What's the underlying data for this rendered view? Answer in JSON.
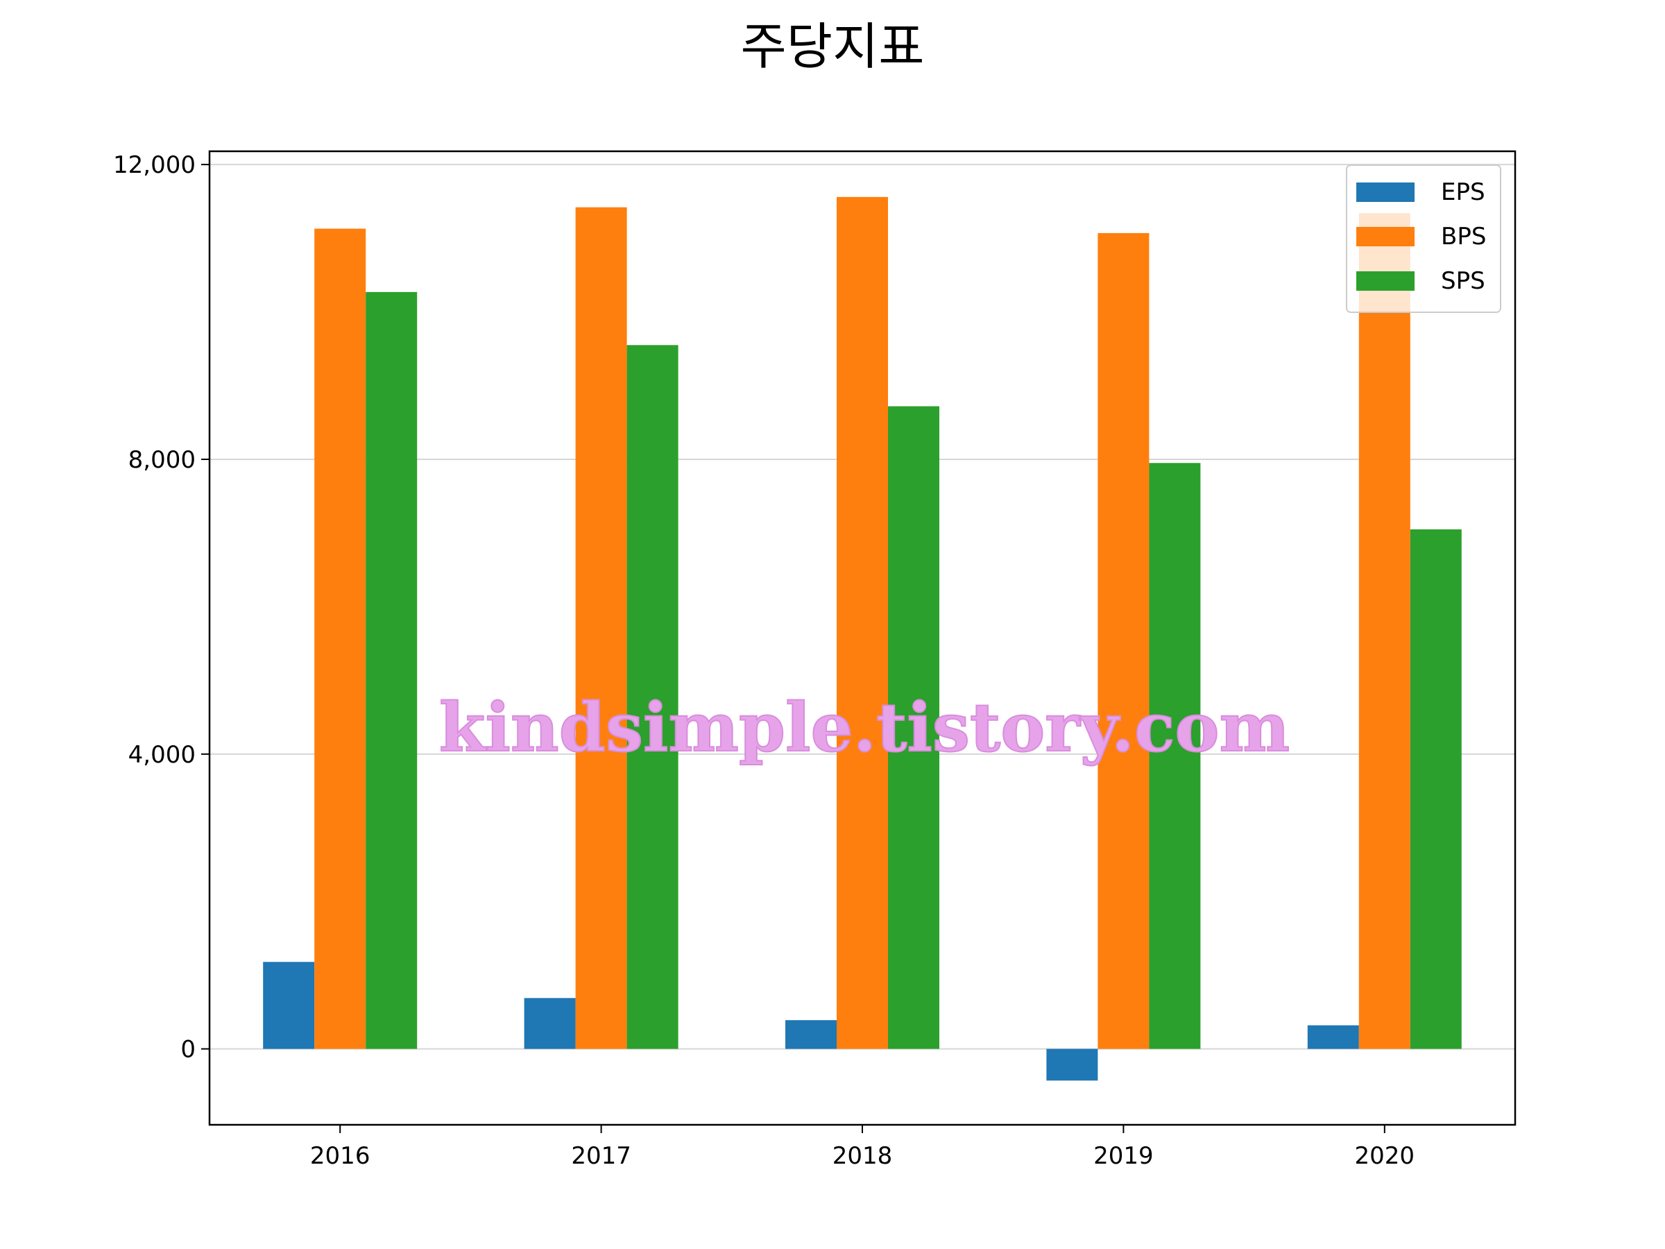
{
  "chart_data": {
    "type": "bar",
    "title": "주당지표",
    "xlabel": "",
    "ylabel": "",
    "categories": [
      "2016",
      "2017",
      "2018",
      "2019",
      "2020"
    ],
    "series": [
      {
        "name": "EPS",
        "color": "#1f77b4",
        "values": [
          1180,
          690,
          390,
          -430,
          320
        ]
      },
      {
        "name": "BPS",
        "color": "#ff7f0e",
        "values": [
          11130,
          11420,
          11560,
          11070,
          11340
        ]
      },
      {
        "name": "SPS",
        "color": "#2ca02c",
        "values": [
          10270,
          9550,
          8720,
          7950,
          7050
        ]
      }
    ],
    "ylim": [
      -1030,
      12180
    ],
    "yticks": [
      0,
      4000,
      8000,
      12000
    ],
    "ytick_labels": [
      "0",
      "4,000",
      "8,000",
      "12,000"
    ],
    "grid": "y",
    "legend_position": "top-right",
    "watermark": "kindsimple.tistory.com"
  }
}
